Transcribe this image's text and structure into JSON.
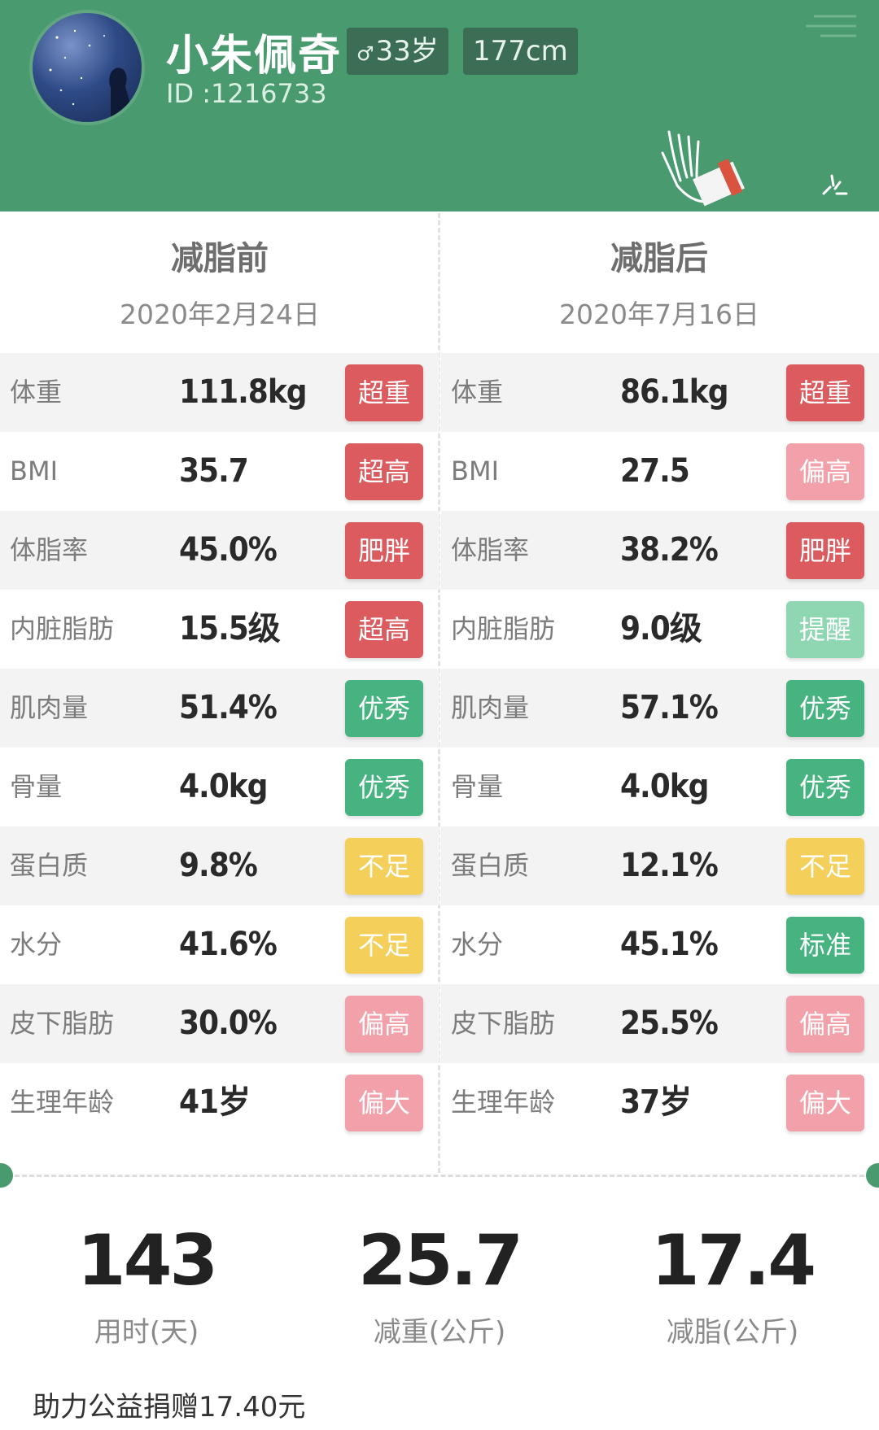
{
  "colors": {
    "header_bg": "#4a9a70",
    "badge_red": "#dc5b5f",
    "badge_green": "#46b380",
    "badge_mint": "#8fd6b3",
    "badge_yellow": "#f4cf5a",
    "badge_pink": "#f2a0aa"
  },
  "profile": {
    "name": "小朱佩奇",
    "id": "ID :1216733",
    "age": "33岁",
    "gender_icon": "male-icon",
    "height": "177cm"
  },
  "before": {
    "title": "减脂前",
    "date": "2020年2月24日",
    "rows": [
      {
        "label": "体重",
        "value": "111.8kg",
        "badge": "超重",
        "color": "#dc5b5f"
      },
      {
        "label": "BMI",
        "value": "35.7",
        "badge": "超高",
        "color": "#dc5b5f"
      },
      {
        "label": "体脂率",
        "value": "45.0%",
        "badge": "肥胖",
        "color": "#dc5b5f"
      },
      {
        "label": "内脏脂肪",
        "value": "15.5级",
        "badge": "超高",
        "color": "#dc5b5f"
      },
      {
        "label": "肌肉量",
        "value": "51.4%",
        "badge": "优秀",
        "color": "#46b380"
      },
      {
        "label": "骨量",
        "value": "4.0kg",
        "badge": "优秀",
        "color": "#46b380"
      },
      {
        "label": "蛋白质",
        "value": "9.8%",
        "badge": "不足",
        "color": "#f4cf5a"
      },
      {
        "label": "水分",
        "value": "41.6%",
        "badge": "不足",
        "color": "#f4cf5a"
      },
      {
        "label": "皮下脂肪",
        "value": "30.0%",
        "badge": "偏高",
        "color": "#f2a0aa"
      },
      {
        "label": "生理年龄",
        "value": "41岁",
        "badge": "偏大",
        "color": "#f2a0aa"
      }
    ]
  },
  "after": {
    "title": "减脂后",
    "date": "2020年7月16日",
    "rows": [
      {
        "label": "体重",
        "value": "86.1kg",
        "badge": "超重",
        "color": "#dc5b5f"
      },
      {
        "label": "BMI",
        "value": "27.5",
        "badge": "偏高",
        "color": "#f2a0aa"
      },
      {
        "label": "体脂率",
        "value": "38.2%",
        "badge": "肥胖",
        "color": "#dc5b5f"
      },
      {
        "label": "内脏脂肪",
        "value": "9.0级",
        "badge": "提醒",
        "color": "#8fd6b3"
      },
      {
        "label": "肌肉量",
        "value": "57.1%",
        "badge": "优秀",
        "color": "#46b380"
      },
      {
        "label": "骨量",
        "value": "4.0kg",
        "badge": "优秀",
        "color": "#46b380"
      },
      {
        "label": "蛋白质",
        "value": "12.1%",
        "badge": "不足",
        "color": "#f4cf5a"
      },
      {
        "label": "水分",
        "value": "45.1%",
        "badge": "标准",
        "color": "#46b380"
      },
      {
        "label": "皮下脂肪",
        "value": "25.5%",
        "badge": "偏高",
        "color": "#f2a0aa"
      },
      {
        "label": "生理年龄",
        "value": "37岁",
        "badge": "偏大",
        "color": "#f2a0aa"
      }
    ]
  },
  "summary": {
    "days": "143",
    "days_label": "用时(天)",
    "weight_loss": "25.7",
    "weight_loss_label": "减重(公斤)",
    "fat_loss": "17.4",
    "fat_loss_label": "减脂(公斤)"
  },
  "donation": "助力公益捐赠17.40元"
}
